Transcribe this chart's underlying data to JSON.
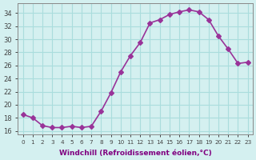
{
  "x": [
    0,
    1,
    2,
    3,
    4,
    5,
    6,
    7,
    8,
    9,
    10,
    11,
    12,
    13,
    14,
    15,
    16,
    17,
    18,
    19,
    20,
    21,
    22,
    23
  ],
  "y": [
    18.5,
    18.0,
    16.8,
    16.5,
    16.5,
    16.7,
    16.5,
    16.7,
    19.0,
    21.8,
    25.0,
    27.5,
    29.5,
    32.5,
    33.0,
    33.8,
    34.2,
    34.5,
    34.2,
    33.0,
    30.5,
    28.5,
    26.3,
    26.5
  ],
  "line_color": "#993399",
  "marker": "D",
  "marker_size": 3,
  "bg_color": "#d4f0f0",
  "grid_color": "#aadddd",
  "xlabel": "Windchill (Refroidissement éolien,°C)",
  "ylabel_ticks": [
    16,
    18,
    20,
    22,
    24,
    26,
    28,
    30,
    32,
    34
  ],
  "xlim": [
    -0.5,
    23.5
  ],
  "ylim": [
    15.5,
    35.5
  ]
}
